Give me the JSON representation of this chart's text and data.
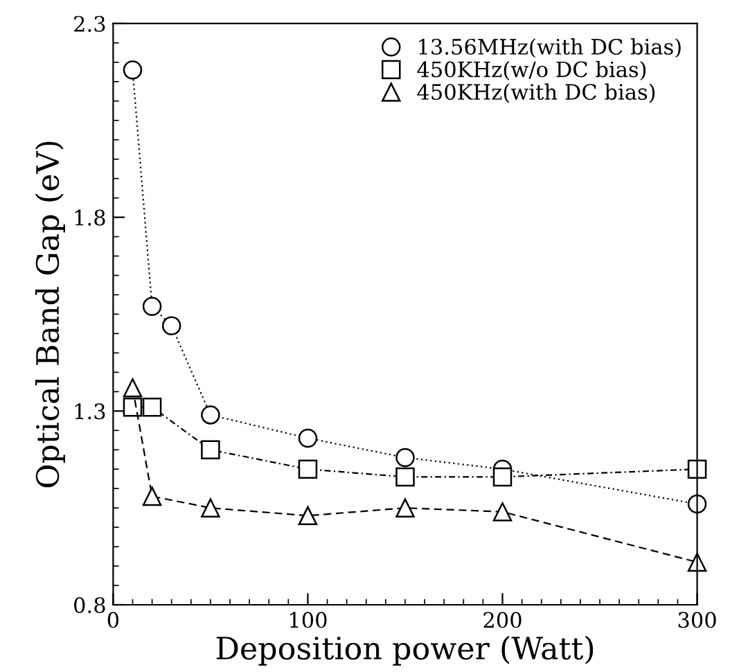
{
  "chart_data": {
    "type": "line",
    "xlabel": "Deposition power (Watt)",
    "ylabel": "Optical Band Gap (eV)",
    "series": [
      {
        "name": "13.56MHz(with DC bias)",
        "color": "#000000",
        "marker": "circle",
        "line_style": "dotted",
        "x": [
          10,
          20,
          30,
          50,
          100,
          150,
          200,
          300
        ],
        "values": [
          2.18,
          1.57,
          1.52,
          1.29,
          1.23,
          1.18,
          1.15,
          1.06
        ]
      },
      {
        "name": "450KHz(w/o DC bias)",
        "color": "#000000",
        "marker": "square",
        "line_style": "dashdot",
        "x": [
          10,
          20,
          50,
          100,
          150,
          200,
          300
        ],
        "values": [
          1.31,
          1.31,
          1.2,
          1.15,
          1.13,
          1.13,
          1.15
        ]
      },
      {
        "name": "450KHz(with DC bias)",
        "color": "#000000",
        "marker": "triangle",
        "line_style": "dashed",
        "x": [
          10,
          20,
          50,
          100,
          150,
          200,
          300
        ],
        "values": [
          1.36,
          1.08,
          1.05,
          1.03,
          1.05,
          1.04,
          0.91
        ]
      }
    ],
    "xlim": [
      0,
      300
    ],
    "xticks": [
      0,
      100,
      200,
      300
    ],
    "ylim": [
      0.8,
      2.3
    ],
    "yticks": [
      0.8,
      1.3,
      1.8,
      2.3
    ],
    "grid": false,
    "legend": "top right"
  }
}
